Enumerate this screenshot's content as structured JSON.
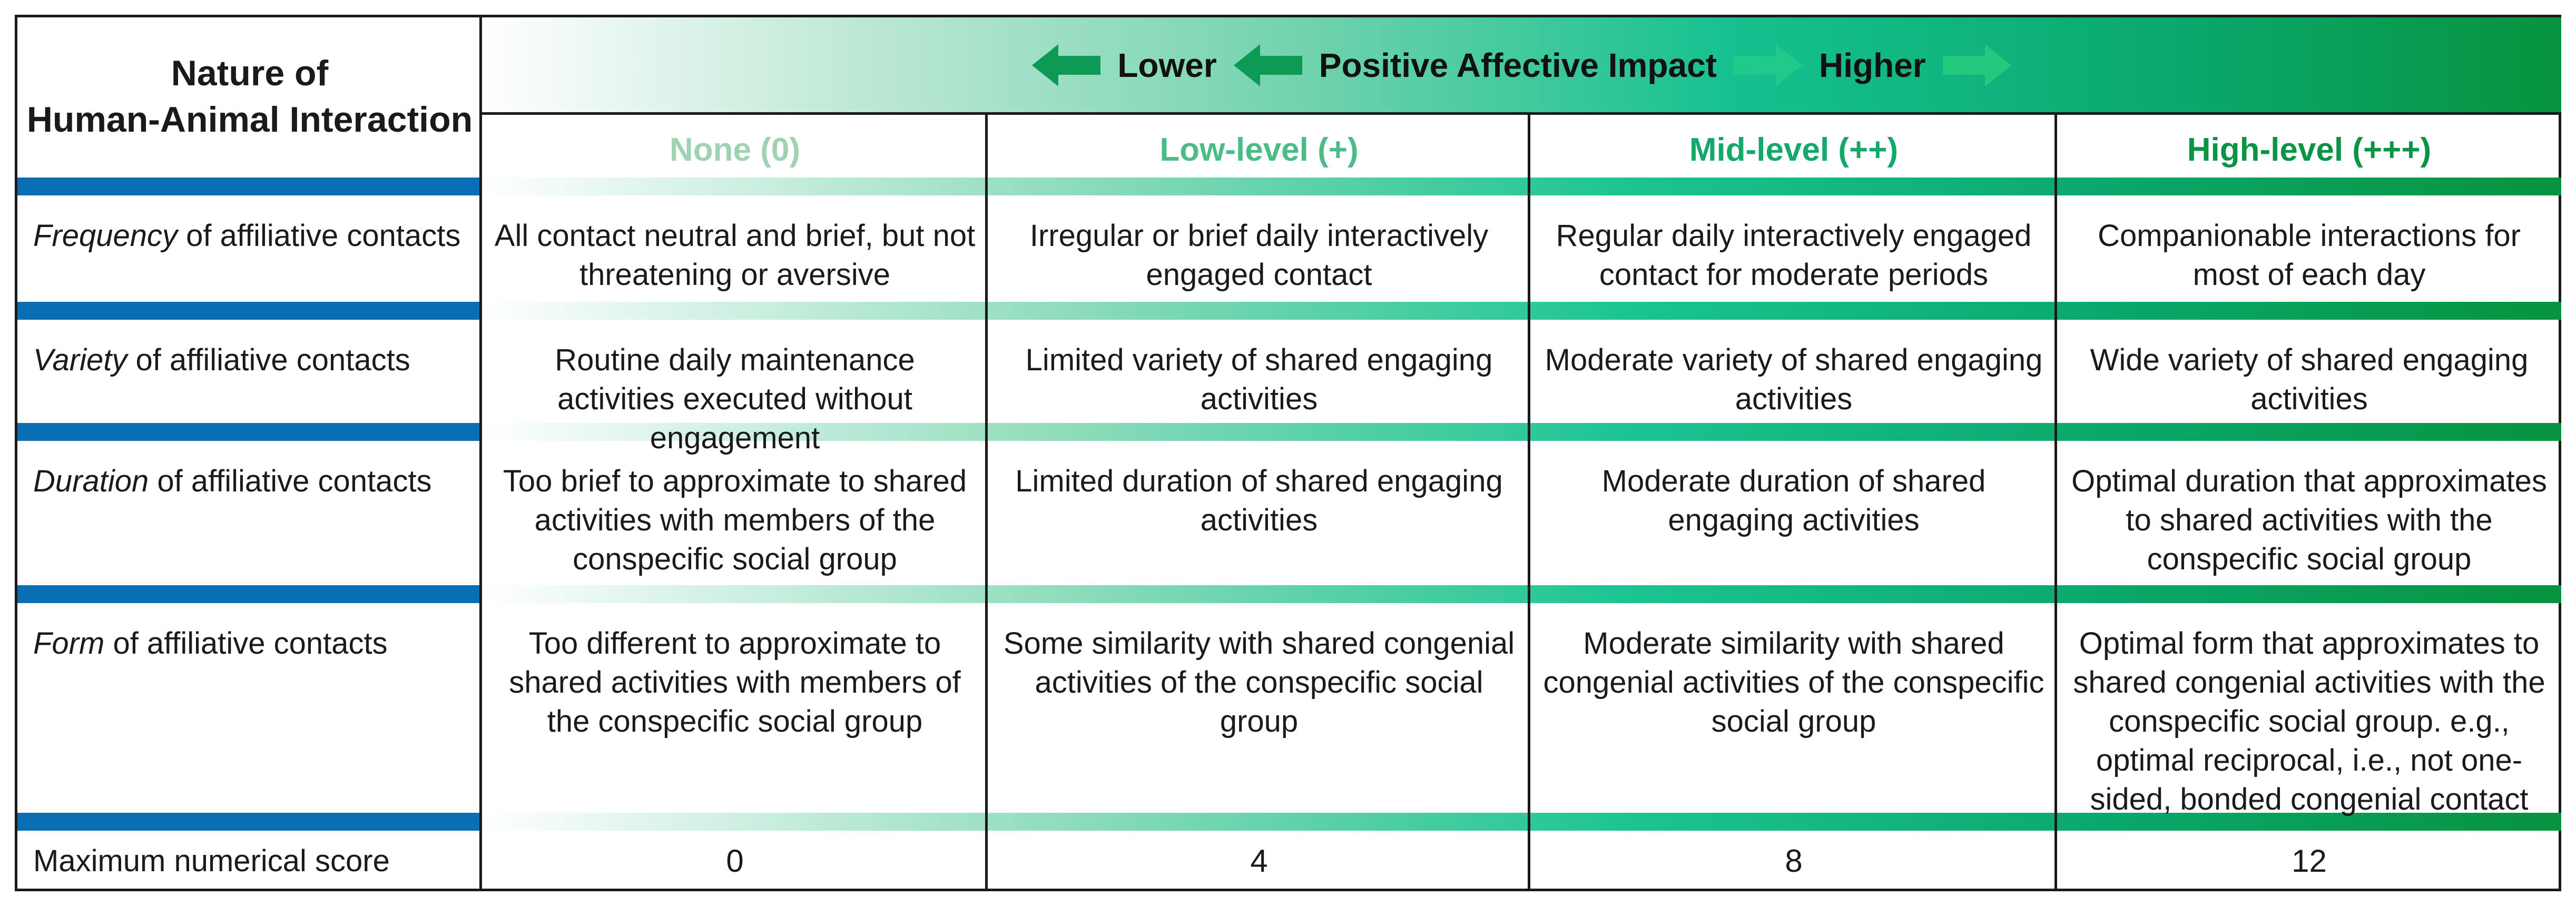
{
  "header": {
    "left_title_line1": "Nature of",
    "left_title_line2": "Human-Animal Interaction",
    "banner_lower": "Lower",
    "banner_middle": "Positive Affective Impact",
    "banner_higher": "Higher"
  },
  "columns": [
    {
      "label": "None (0)",
      "color": "#9fd2b0"
    },
    {
      "label": "Low-level (+)",
      "color": "#4dbb86"
    },
    {
      "label": "Mid-level (++)",
      "color": "#14a86a"
    },
    {
      "label": "High-level (+++)",
      "color": "#0b9445"
    }
  ],
  "rows": [
    {
      "label_italic": "Frequency",
      "label_rest": " of affiliative contacts",
      "cells": [
        "All contact neutral and brief, but not threatening or aversive",
        "Irregular or brief daily interactively engaged contact",
        "Regular daily interactively engaged contact for moderate periods",
        "Companionable interactions for most of each day"
      ]
    },
    {
      "label_italic": "Variety",
      "label_rest": " of affiliative contacts",
      "cells": [
        "Routine daily maintenance activities executed without engagement",
        "Limited variety of shared engaging activities",
        "Moderate variety of shared engaging activities",
        "Wide variety of shared engaging activities"
      ]
    },
    {
      "label_italic": "Duration",
      "label_rest": " of affiliative contacts",
      "cells": [
        "Too brief to approximate to shared activities with members of the conspecific social group",
        "Limited duration of shared engaging activities",
        "Moderate duration of shared engaging activities",
        "Optimal duration that approximates to shared activities with the conspecific social group"
      ]
    },
    {
      "label_italic": "Form",
      "label_rest": " of affiliative contacts",
      "cells": [
        "Too different to approximate to shared activities with members of the conspecific social group",
        "Some similarity with shared congenial activities of the conspecific social group",
        "Moderate similarity with shared congenial activities of the conspecific social group",
        "Optimal form that approximates to shared congenial activities with the conspecific social group. e.g., optimal reciprocal, i.e., not one-sided, bonded congenial contact"
      ]
    }
  ],
  "score_row": {
    "label": "Maximum numerical score",
    "values": [
      "0",
      "4",
      "8",
      "12"
    ]
  },
  "colors": {
    "stripe_blue": "#0a6eb4",
    "banner_green": "#07933f",
    "border": "#1a1a1a"
  },
  "icons": [
    "arrow-left-icon",
    "arrow-right-icon"
  ]
}
